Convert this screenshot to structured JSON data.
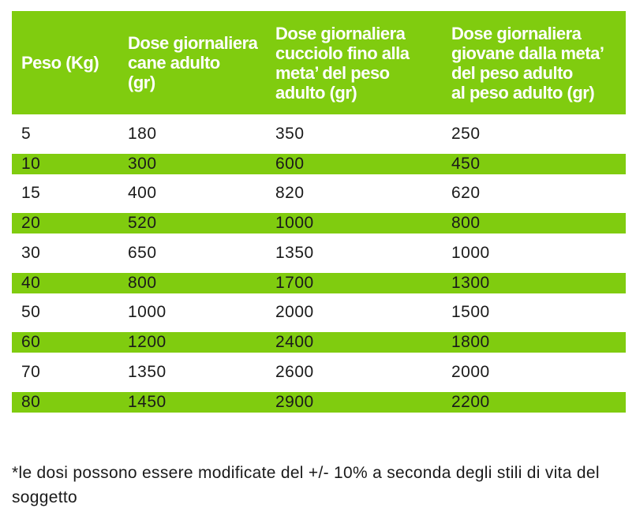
{
  "colors": {
    "header_bg": "#80cc0f",
    "stripe_bg": "#80cc0f",
    "header_text": "#ffffff",
    "body_text": "#1a1a1a"
  },
  "table": {
    "headers": [
      "Peso (Kg)",
      "Dose giornaliera\ncane adulto\n(gr)",
      "Dose giornaliera\ncucciolo fino alla\nmeta’ del peso\nadulto (gr)",
      "Dose giornaliera\ngiovane dalla meta’\ndel peso adulto\nal peso adulto (gr)"
    ],
    "rows": [
      [
        "5",
        "180",
        "350",
        "250"
      ],
      [
        "10",
        "300",
        "600",
        "450"
      ],
      [
        "15",
        "400",
        "820",
        "620"
      ],
      [
        "20",
        "520",
        "1000",
        "800"
      ],
      [
        "30",
        "650",
        "1350",
        "1000"
      ],
      [
        "40",
        "800",
        "1700",
        "1300"
      ],
      [
        "50",
        "1000",
        "2000",
        "1500"
      ],
      [
        "60",
        "1200",
        "2400",
        "1800"
      ],
      [
        "70",
        "1350",
        "2600",
        "2000"
      ],
      [
        "80",
        "1450",
        "2900",
        "2200"
      ]
    ]
  },
  "note": "*le dosi possono essere modificate del +/- 10% a seconda degli stili di vita del soggetto"
}
